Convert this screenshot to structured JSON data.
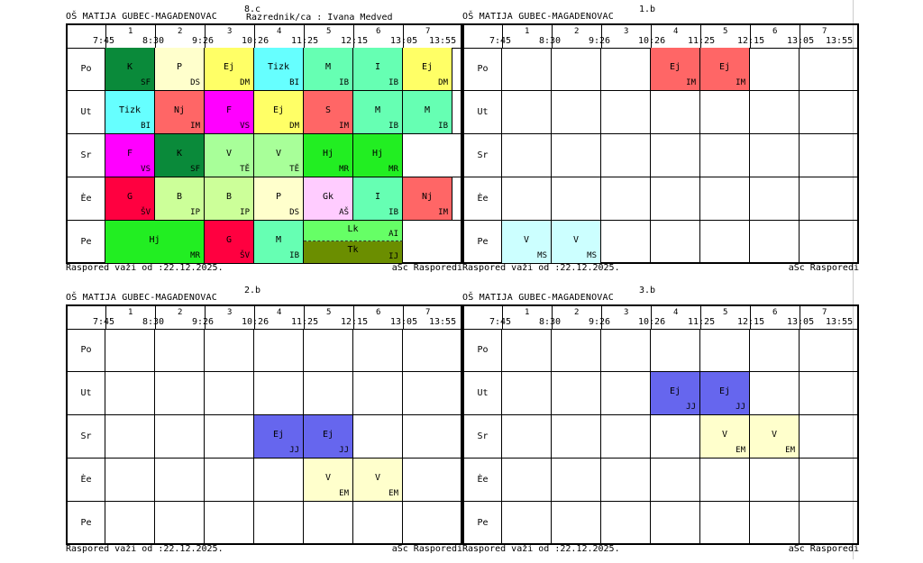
{
  "school": "OŠ MATIJA GUBEC-MAGADENOVAC",
  "footer_left": "Raspored važi od :22.12.2025.",
  "footer_right": "aSc Rasporedi",
  "header": {
    "numbers": [
      "1",
      "2",
      "3",
      "4",
      "5",
      "6",
      "7"
    ],
    "times_text": "7:45 - 8:30",
    "times": [
      "7:45",
      "8:30",
      "9:26",
      "10:26",
      "11:25",
      "12:15",
      "13:05",
      "13:55"
    ]
  },
  "days": [
    "Po",
    "Ut",
    "Sr",
    "Èe",
    "Pe"
  ],
  "panels": [
    {
      "id": "8c",
      "class_name": "8.c",
      "teacher": "Razrednik/ca : Ivana Medved",
      "lessons": [
        {
          "day": 0,
          "slot": 0,
          "span": 1,
          "subject": "K",
          "teacher": "SF",
          "color": "#0a8a3a"
        },
        {
          "day": 0,
          "slot": 1,
          "span": 1,
          "subject": "P",
          "teacher": "DS",
          "color": "#ffffcc"
        },
        {
          "day": 0,
          "slot": 2,
          "span": 1,
          "subject": "Ej",
          "teacher": "DM",
          "color": "#ffff66"
        },
        {
          "day": 0,
          "slot": 3,
          "span": 1,
          "subject": "Tizk",
          "teacher": "BI",
          "color": "#66ffff"
        },
        {
          "day": 0,
          "slot": 4,
          "span": 1,
          "subject": "M",
          "teacher": "IB",
          "color": "#66ffb3"
        },
        {
          "day": 0,
          "slot": 5,
          "span": 1,
          "subject": "I",
          "teacher": "IB",
          "color": "#66ffb3"
        },
        {
          "day": 0,
          "slot": 6,
          "span": 1,
          "subject": "Ej",
          "teacher": "DM",
          "color": "#ffff66"
        },
        {
          "day": 1,
          "slot": 0,
          "span": 1,
          "subject": "Tizk",
          "teacher": "BI",
          "color": "#66ffff"
        },
        {
          "day": 1,
          "slot": 1,
          "span": 1,
          "subject": "Nj",
          "teacher": "IM",
          "color": "#ff6666"
        },
        {
          "day": 1,
          "slot": 2,
          "span": 1,
          "subject": "F",
          "teacher": "VS",
          "color": "#ff00ff"
        },
        {
          "day": 1,
          "slot": 3,
          "span": 1,
          "subject": "Ej",
          "teacher": "DM",
          "color": "#ffff66"
        },
        {
          "day": 1,
          "slot": 4,
          "span": 1,
          "subject": "S",
          "teacher": "IM",
          "color": "#ff6666"
        },
        {
          "day": 1,
          "slot": 5,
          "span": 1,
          "subject": "M",
          "teacher": "IB",
          "color": "#66ffb3"
        },
        {
          "day": 1,
          "slot": 6,
          "span": 1,
          "subject": "M",
          "teacher": "IB",
          "color": "#66ffb3"
        },
        {
          "day": 2,
          "slot": 0,
          "span": 1,
          "subject": "F",
          "teacher": "VS",
          "color": "#ff00ff"
        },
        {
          "day": 2,
          "slot": 1,
          "span": 1,
          "subject": "K",
          "teacher": "SF",
          "color": "#0a8a3a"
        },
        {
          "day": 2,
          "slot": 2,
          "span": 1,
          "subject": "V",
          "teacher": "TĚ",
          "color": "#a8ff99"
        },
        {
          "day": 2,
          "slot": 3,
          "span": 1,
          "subject": "V",
          "teacher": "TĚ",
          "color": "#a8ff99"
        },
        {
          "day": 2,
          "slot": 4,
          "span": 1,
          "subject": "Hj",
          "teacher": "MR",
          "color": "#22ee22"
        },
        {
          "day": 2,
          "slot": 5,
          "span": 1,
          "subject": "Hj",
          "teacher": "MR",
          "color": "#22ee22"
        },
        {
          "day": 3,
          "slot": 0,
          "span": 1,
          "subject": "G",
          "teacher": "ŠV",
          "color": "#ff0040"
        },
        {
          "day": 3,
          "slot": 1,
          "span": 1,
          "subject": "B",
          "teacher": "IP",
          "color": "#ccff99"
        },
        {
          "day": 3,
          "slot": 2,
          "span": 1,
          "subject": "B",
          "teacher": "IP",
          "color": "#ccff99"
        },
        {
          "day": 3,
          "slot": 3,
          "span": 1,
          "subject": "P",
          "teacher": "DS",
          "color": "#ffffcc"
        },
        {
          "day": 3,
          "slot": 4,
          "span": 1,
          "subject": "Gk",
          "teacher": "AŠ",
          "color": "#ffccff"
        },
        {
          "day": 3,
          "slot": 5,
          "span": 1,
          "subject": "I",
          "teacher": "IB",
          "color": "#66ffb3"
        },
        {
          "day": 3,
          "slot": 6,
          "span": 1,
          "subject": "Nj",
          "teacher": "IM",
          "color": "#ff6666"
        },
        {
          "day": 4,
          "slot": 0,
          "span": 2,
          "subject": "Hj",
          "teacher": "MR",
          "color": "#22ee22"
        },
        {
          "day": 4,
          "slot": 2,
          "span": 1,
          "subject": "G",
          "teacher": "ŠV",
          "color": "#ff0040"
        },
        {
          "day": 4,
          "slot": 3,
          "span": 1,
          "subject": "M",
          "teacher": "IB",
          "color": "#66ffb3"
        },
        {
          "day": 4,
          "slot": 4,
          "span": 2,
          "subject": "Lk",
          "teacher": "AI",
          "color": "#66ff66",
          "half": "top"
        },
        {
          "day": 4,
          "slot": 4,
          "span": 2,
          "subject": "Tk",
          "teacher": "IJ",
          "color": "#6b8e00",
          "half": "bottom"
        }
      ]
    },
    {
      "id": "1b",
      "class_name": "1.b",
      "teacher": "",
      "lessons": [
        {
          "day": 0,
          "slot": 3,
          "span": 1,
          "subject": "Ej",
          "teacher": "IM",
          "color": "#ff6666"
        },
        {
          "day": 0,
          "slot": 4,
          "span": 1,
          "subject": "Ej",
          "teacher": "IM",
          "color": "#ff6666"
        },
        {
          "day": 4,
          "slot": 0,
          "span": 1,
          "subject": "V",
          "teacher": "MS",
          "color": "#ccffff"
        },
        {
          "day": 4,
          "slot": 1,
          "span": 1,
          "subject": "V",
          "teacher": "MS",
          "color": "#ccffff"
        }
      ]
    },
    {
      "id": "2b",
      "class_name": "2.b",
      "teacher": "",
      "lessons": [
        {
          "day": 2,
          "slot": 3,
          "span": 1,
          "subject": "Ej",
          "teacher": "JJ",
          "color": "#6666ee"
        },
        {
          "day": 2,
          "slot": 4,
          "span": 1,
          "subject": "Ej",
          "teacher": "JJ",
          "color": "#6666ee"
        },
        {
          "day": 3,
          "slot": 4,
          "span": 1,
          "subject": "V",
          "teacher": "EM",
          "color": "#ffffcc"
        },
        {
          "day": 3,
          "slot": 5,
          "span": 1,
          "subject": "V",
          "teacher": "EM",
          "color": "#ffffcc"
        }
      ]
    },
    {
      "id": "3b",
      "class_name": "3.b",
      "teacher": "",
      "lessons": [
        {
          "day": 1,
          "slot": 3,
          "span": 1,
          "subject": "Ej",
          "teacher": "JJ",
          "color": "#6666ee"
        },
        {
          "day": 1,
          "slot": 4,
          "span": 1,
          "subject": "Ej",
          "teacher": "JJ",
          "color": "#6666ee"
        },
        {
          "day": 2,
          "slot": 4,
          "span": 1,
          "subject": "V",
          "teacher": "EM",
          "color": "#ffffcc"
        },
        {
          "day": 2,
          "slot": 5,
          "span": 1,
          "subject": "V",
          "teacher": "EM",
          "color": "#ffffcc"
        }
      ]
    }
  ]
}
